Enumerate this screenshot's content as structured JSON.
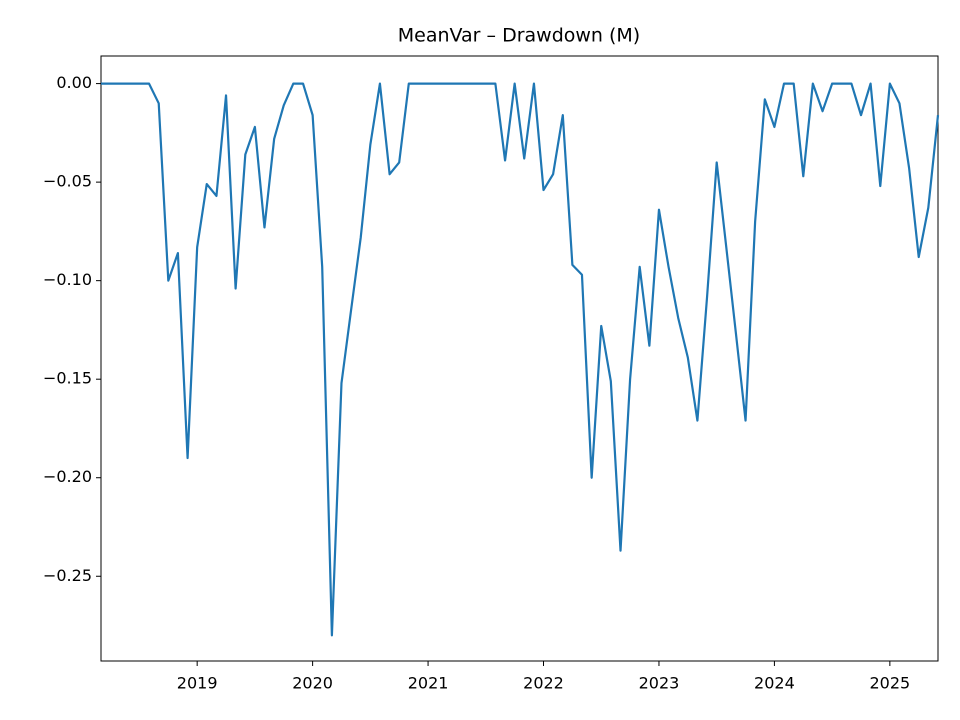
{
  "chart_data": {
    "type": "line",
    "title": "MeanVar – Drawdown (M)",
    "color": "#1f77b4",
    "x": [
      2018.167,
      2018.25,
      2018.333,
      2018.417,
      2018.5,
      2018.583,
      2018.667,
      2018.75,
      2018.833,
      2018.917,
      2019,
      2019.083,
      2019.167,
      2019.25,
      2019.333,
      2019.417,
      2019.5,
      2019.583,
      2019.667,
      2019.75,
      2019.833,
      2019.917,
      2020,
      2020.083,
      2020.167,
      2020.25,
      2020.333,
      2020.417,
      2020.5,
      2020.583,
      2020.667,
      2020.75,
      2020.833,
      2020.917,
      2021,
      2021.083,
      2021.167,
      2021.25,
      2021.333,
      2021.417,
      2021.5,
      2021.583,
      2021.667,
      2021.75,
      2021.833,
      2021.917,
      2022,
      2022.083,
      2022.167,
      2022.25,
      2022.333,
      2022.417,
      2022.5,
      2022.583,
      2022.667,
      2022.75,
      2022.833,
      2022.917,
      2023,
      2023.083,
      2023.167,
      2023.25,
      2023.333,
      2023.417,
      2023.5,
      2023.583,
      2023.667,
      2023.75,
      2023.833,
      2023.917,
      2024,
      2024.083,
      2024.167,
      2024.25,
      2024.333,
      2024.417,
      2024.5,
      2024.583,
      2024.667,
      2024.75,
      2024.833,
      2024.917,
      2025,
      2025.083,
      2025.167,
      2025.25,
      2025.333,
      2025.417
    ],
    "values": [
      0,
      0,
      0,
      0,
      0,
      0,
      -0.01,
      -0.1,
      -0.086,
      -0.19,
      -0.083,
      -0.051,
      -0.057,
      -0.006,
      -0.104,
      -0.036,
      -0.022,
      -0.073,
      -0.028,
      -0.011,
      0,
      0,
      -0.016,
      -0.093,
      -0.28,
      -0.152,
      -0.115,
      -0.078,
      -0.031,
      0,
      -0.046,
      -0.04,
      0,
      0,
      0,
      0,
      0,
      0,
      0,
      0,
      0,
      0,
      -0.039,
      0,
      -0.038,
      0,
      -0.054,
      -0.046,
      -0.016,
      -0.092,
      -0.097,
      -0.2,
      -0.123,
      -0.151,
      -0.237,
      -0.15,
      -0.093,
      -0.133,
      -0.064,
      -0.093,
      -0.119,
      -0.139,
      -0.171,
      -0.108,
      -0.04,
      -0.083,
      -0.127,
      -0.171,
      -0.07,
      -0.008,
      -0.022,
      0,
      0,
      -0.047,
      0,
      -0.014,
      0,
      0,
      0,
      -0.016,
      0,
      -0.052,
      0,
      -0.01,
      -0.043,
      -0.088,
      -0.063,
      -0.016
    ],
    "xlim": [
      2018.167,
      2025.417
    ],
    "xticks": [
      2019,
      2020,
      2021,
      2022,
      2023,
      2024,
      2025
    ],
    "ylim": [
      -0.293,
      0.014
    ],
    "yticks": [
      {
        "value": 0,
        "label": "0.00"
      },
      {
        "value": -0.05,
        "label": "−0.05"
      },
      {
        "value": -0.1,
        "label": "−0.10"
      },
      {
        "value": -0.15,
        "label": "−0.15"
      },
      {
        "value": -0.2,
        "label": "−0.20"
      },
      {
        "value": -0.25,
        "label": "−0.25"
      }
    ],
    "grid": false
  }
}
